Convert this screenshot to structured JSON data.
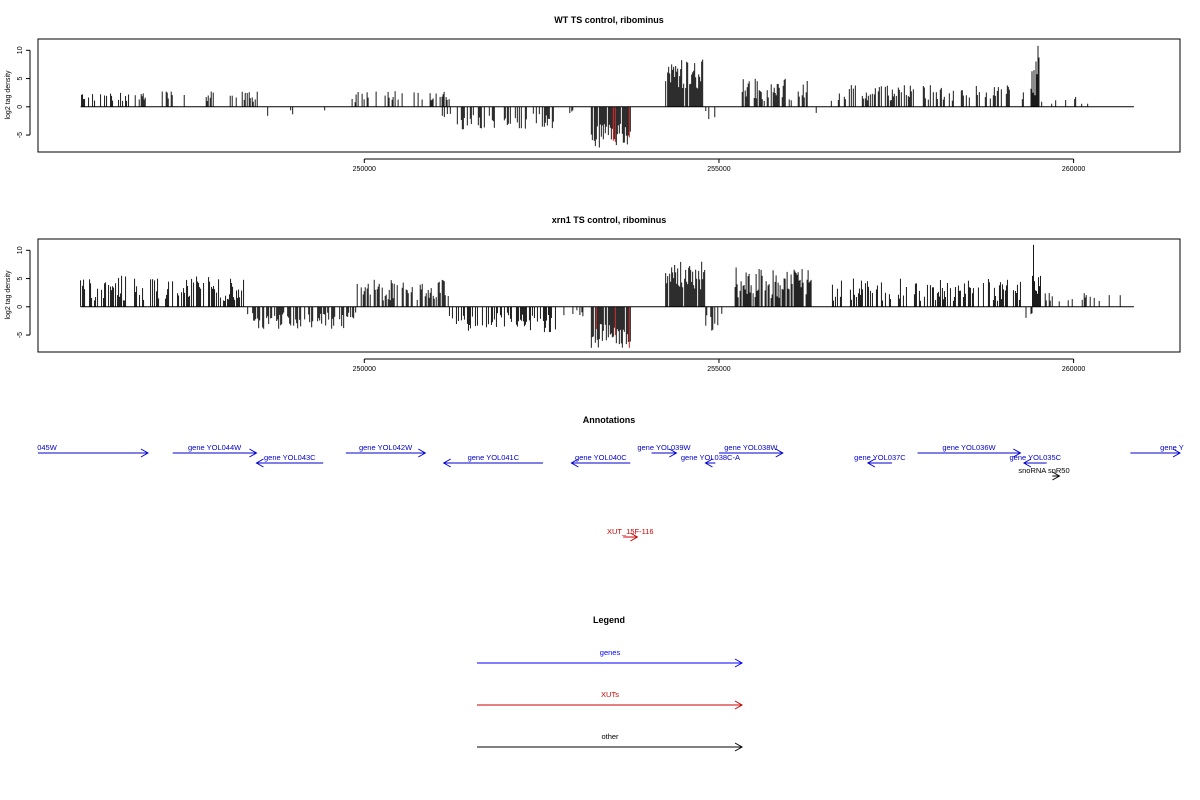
{
  "chart_data": [
    {
      "type": "bar",
      "title": "WT TS control, ribominus",
      "ylabel": "log2 tag density",
      "xlim": [
        245400,
        261500
      ],
      "ylim": [
        -8,
        12
      ],
      "xticks": [
        250000,
        255000,
        260000
      ],
      "xtick_labels": [
        "250000",
        "255000",
        "260000"
      ],
      "yticks": [
        -5,
        0,
        5,
        10
      ],
      "ytick_labels": [
        "-5",
        "0",
        "5",
        "10"
      ],
      "bar_colors": {
        "default": "#000000",
        "highlight": "#cc0000"
      },
      "baseline": [
        246000,
        260850
      ],
      "regions": [
        {
          "x": [
            246000,
            246700
          ],
          "density": 0.35,
          "sign": 1,
          "amp": [
            1.0,
            2.5
          ]
        },
        {
          "x": [
            246500,
            246650
          ],
          "density": 0.05,
          "sign": 1,
          "amp": [
            5.0,
            6.3
          ]
        },
        {
          "x": [
            246700,
            248500
          ],
          "density": 0.25,
          "sign": 1,
          "amp": [
            0.8,
            2.8
          ]
        },
        {
          "x": [
            248300,
            249600
          ],
          "density": 0.03,
          "sign": -1,
          "amp": [
            0.5,
            2.3
          ]
        },
        {
          "x": [
            249800,
            251200
          ],
          "density": 0.3,
          "sign": 1,
          "amp": [
            0.8,
            2.8
          ]
        },
        {
          "x": [
            251100,
            252700
          ],
          "density": 0.4,
          "sign": -1,
          "amp": [
            1.0,
            4.0
          ]
        },
        {
          "x": [
            252700,
            253000
          ],
          "density": 0.1,
          "sign": -1,
          "amp": [
            0.5,
            1.5
          ]
        },
        {
          "x": [
            253200,
            253750
          ],
          "density": 0.9,
          "sign": -1,
          "amp": [
            3.0,
            7.2
          ],
          "highlight": true
        },
        {
          "x": [
            254250,
            254800
          ],
          "density": 0.9,
          "sign": 1,
          "amp": [
            3.0,
            8.5
          ]
        },
        {
          "x": [
            254800,
            254950
          ],
          "density": 0.2,
          "sign": -1,
          "amp": [
            0.5,
            3.0
          ]
        },
        {
          "x": [
            255300,
            256300
          ],
          "density": 0.5,
          "sign": 1,
          "amp": [
            1.0,
            5.0
          ]
        },
        {
          "x": [
            256300,
            256400
          ],
          "density": 0.1,
          "sign": -1,
          "amp": [
            1.0,
            3.0
          ]
        },
        {
          "x": [
            256500,
            259300
          ],
          "density": 0.35,
          "sign": 1,
          "amp": [
            1.0,
            4.0
          ]
        },
        {
          "x": [
            259400,
            259520
          ],
          "density": 1.0,
          "sign": 1,
          "amp": [
            2.0,
            11.5
          ]
        },
        {
          "x": [
            259550,
            260600
          ],
          "density": 0.06,
          "sign": 1,
          "amp": [
            0.5,
            1.8
          ]
        }
      ]
    },
    {
      "type": "bar",
      "title": "xrn1 TS control, ribominus",
      "ylabel": "log2 tag density",
      "xlim": [
        245400,
        261500
      ],
      "ylim": [
        -8,
        12
      ],
      "xticks": [
        250000,
        255000,
        260000
      ],
      "xtick_labels": [
        "250000",
        "255000",
        "260000"
      ],
      "yticks": [
        -5,
        0,
        5,
        10
      ],
      "ytick_labels": [
        "-5",
        "0",
        "5",
        "10"
      ],
      "bar_colors": {
        "default": "#000000",
        "highlight": "#cc0000"
      },
      "baseline": [
        246000,
        260850
      ],
      "regions": [
        {
          "x": [
            246000,
            248300
          ],
          "density": 0.45,
          "sign": 1,
          "amp": [
            1.0,
            5.5
          ]
        },
        {
          "x": [
            248300,
            249900
          ],
          "density": 0.55,
          "sign": -1,
          "amp": [
            1.0,
            4.0
          ]
        },
        {
          "x": [
            249900,
            251200
          ],
          "density": 0.65,
          "sign": 1,
          "amp": [
            1.0,
            4.8
          ]
        },
        {
          "x": [
            251200,
            252700
          ],
          "density": 0.55,
          "sign": -1,
          "amp": [
            1.0,
            4.5
          ]
        },
        {
          "x": [
            252800,
            253100
          ],
          "density": 0.2,
          "sign": -1,
          "amp": [
            0.5,
            2.5
          ]
        },
        {
          "x": [
            253200,
            253750
          ],
          "density": 0.9,
          "sign": -1,
          "amp": [
            3.0,
            7.5
          ],
          "highlight": true
        },
        {
          "x": [
            254250,
            254800
          ],
          "density": 0.9,
          "sign": 1,
          "amp": [
            3.0,
            8.0
          ]
        },
        {
          "x": [
            254800,
            255100
          ],
          "density": 0.4,
          "sign": -1,
          "amp": [
            1.0,
            4.5
          ]
        },
        {
          "x": [
            255200,
            256300
          ],
          "density": 0.75,
          "sign": 1,
          "amp": [
            1.5,
            7.0
          ]
        },
        {
          "x": [
            256600,
            259300
          ],
          "density": 0.5,
          "sign": 1,
          "amp": [
            1.0,
            5.0
          ]
        },
        {
          "x": [
            259300,
            259420
          ],
          "density": 0.3,
          "sign": -1,
          "amp": [
            1.0,
            2.0
          ]
        },
        {
          "x": [
            259420,
            259540
          ],
          "density": 1.0,
          "sign": 1,
          "amp": [
            2.0,
            11.5
          ]
        },
        {
          "x": [
            259600,
            260700
          ],
          "density": 0.12,
          "sign": 1,
          "amp": [
            0.8,
            2.5
          ]
        }
      ]
    }
  ],
  "annotations": {
    "title": "Annotations",
    "features": [
      {
        "label": "045W",
        "x1": 245400,
        "x2": 246950,
        "row": 0,
        "dir": "right",
        "color": "#0000cc"
      },
      {
        "label": "gene YOL044W",
        "x1": 247300,
        "x2": 248480,
        "row": 0,
        "dir": "right",
        "color": "#0000cc"
      },
      {
        "label": "gene YOL043C",
        "x1": 248480,
        "x2": 249420,
        "row": 1,
        "dir": "left",
        "color": "#0000cc"
      },
      {
        "label": "gene YOL042W",
        "x1": 249740,
        "x2": 250860,
        "row": 0,
        "dir": "right",
        "color": "#0000cc"
      },
      {
        "label": "gene YOL041C",
        "x1": 251120,
        "x2": 252520,
        "row": 1,
        "dir": "left",
        "color": "#0000cc"
      },
      {
        "label": "gene YOL040C",
        "x1": 252920,
        "x2": 253750,
        "row": 1,
        "dir": "left",
        "color": "#0000cc"
      },
      {
        "label": "gene YOL039W",
        "x1": 254050,
        "x2": 254400,
        "row": 0,
        "dir": "right",
        "color": "#0000cc"
      },
      {
        "label": "gene YOL038C-A",
        "x1": 254810,
        "x2": 254950,
        "row": 1,
        "dir": "left",
        "color": "#0000cc"
      },
      {
        "label": "gene YOL038W",
        "x1": 255000,
        "x2": 255900,
        "row": 0,
        "dir": "right",
        "color": "#0000cc"
      },
      {
        "label": "gene YOL037C",
        "x1": 257100,
        "x2": 257440,
        "row": 1,
        "dir": "left",
        "color": "#0000cc"
      },
      {
        "label": "gene YOL036W",
        "x1": 257800,
        "x2": 259250,
        "row": 0,
        "dir": "right",
        "color": "#0000cc"
      },
      {
        "label": "gene YOL035C",
        "x1": 259300,
        "x2": 259620,
        "row": 1,
        "dir": "left",
        "color": "#0000cc"
      },
      {
        "label": "snoRNA snR50",
        "x1": 259700,
        "x2": 259800,
        "row": 2,
        "dir": "right",
        "color": "#000000"
      },
      {
        "label": "gene Y",
        "x1": 260800,
        "x2": 261500,
        "row": 0,
        "dir": "right",
        "color": "#0000cc"
      },
      {
        "label": "XUT_15F-116",
        "x1": 253650,
        "x2": 253850,
        "row": 3,
        "dir": "right",
        "color": "#cc0000"
      }
    ]
  },
  "legend": {
    "title": "Legend",
    "items": [
      {
        "label": "genes",
        "color": "#0000ff"
      },
      {
        "label": "XUTs",
        "color": "#cc0000"
      },
      {
        "label": "other",
        "color": "#000000"
      }
    ]
  }
}
